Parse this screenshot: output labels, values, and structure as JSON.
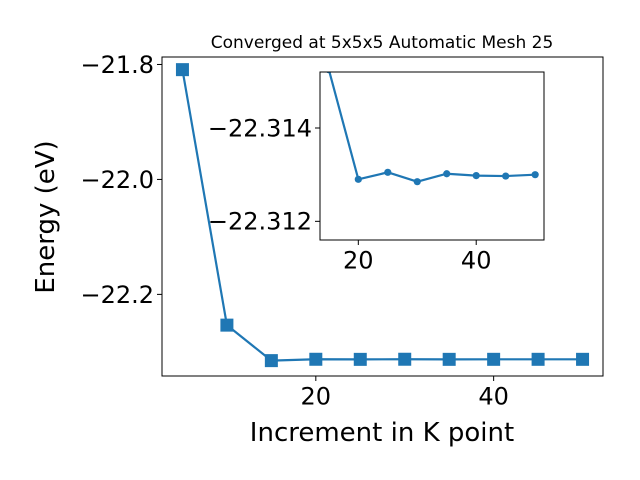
{
  "colors": {
    "series": "#1f77b4",
    "axis": "#000000",
    "background": "#ffffff"
  },
  "chart_data": [
    {
      "type": "line",
      "title": "Converged at 5x5x5 Automatic Mesh 25",
      "xlabel": "Increment in K point",
      "ylabel": "Energy (eV)",
      "marker": "square",
      "grid": false,
      "xlim": [
        2.7,
        52.3
      ],
      "ylim": [
        -22.342,
        -21.787
      ],
      "x_ticks": [
        20,
        40
      ],
      "x_tick_labels": [
        "20",
        "40"
      ],
      "y_ticks": [
        -21.8,
        -22.0,
        -22.2
      ],
      "y_tick_labels": [
        "−21.8",
        "−22.0",
        "−22.2"
      ],
      "x": [
        5,
        10,
        15,
        20,
        25,
        30,
        35,
        40,
        45,
        50
      ],
      "y": [
        -21.809,
        -22.2535,
        -22.31525,
        -22.3129,
        -22.31305,
        -22.31285,
        -22.31302,
        -22.31298,
        -22.31297,
        -22.313
      ]
    },
    {
      "type": "line",
      "role": "inset",
      "marker": "circle",
      "grid": false,
      "xlim": [
        13.5,
        51.5
      ],
      "ylim": [
        -22.3116,
        -22.3152
      ],
      "x_ticks": [
        20,
        40
      ],
      "x_tick_labels": [
        "20",
        "40"
      ],
      "y_ticks": [
        -22.314,
        -22.312
      ],
      "y_tick_labels": [
        "−22.314",
        "−22.312"
      ],
      "x": [
        15,
        20,
        25,
        30,
        35,
        40,
        45,
        50
      ],
      "y": [
        -22.31525,
        -22.3129,
        -22.31305,
        -22.31285,
        -22.31302,
        -22.31298,
        -22.31297,
        -22.313
      ]
    }
  ]
}
